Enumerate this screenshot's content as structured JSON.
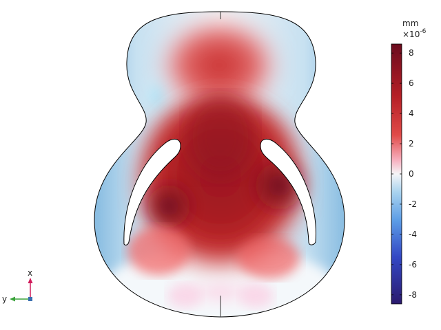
{
  "colorbar": {
    "unit": "mm",
    "multiplier": "×10",
    "exponent": "-6",
    "min": -8.6,
    "max": 8.6,
    "ticks": [
      "8",
      "6",
      "4",
      "2",
      "0",
      "-2",
      "-4",
      "-6",
      "-8"
    ],
    "tick_values": [
      8,
      6,
      4,
      2,
      0,
      -2,
      -4,
      -6,
      -8
    ],
    "colors": {
      "high": "#6b0b1e",
      "upper": "#c52a2a",
      "mid_high": "#f29a9a",
      "zero": "#f3f3f5",
      "mid_low": "#8cc4e8",
      "lower": "#4a7ad6",
      "low": "#2b1a6e"
    }
  },
  "axes_triad": {
    "x_label": "x",
    "y_label": "y",
    "x_color": "#d11a5a",
    "y_color": "#3aa33a",
    "origin_color": "#3a6fb0"
  }
}
